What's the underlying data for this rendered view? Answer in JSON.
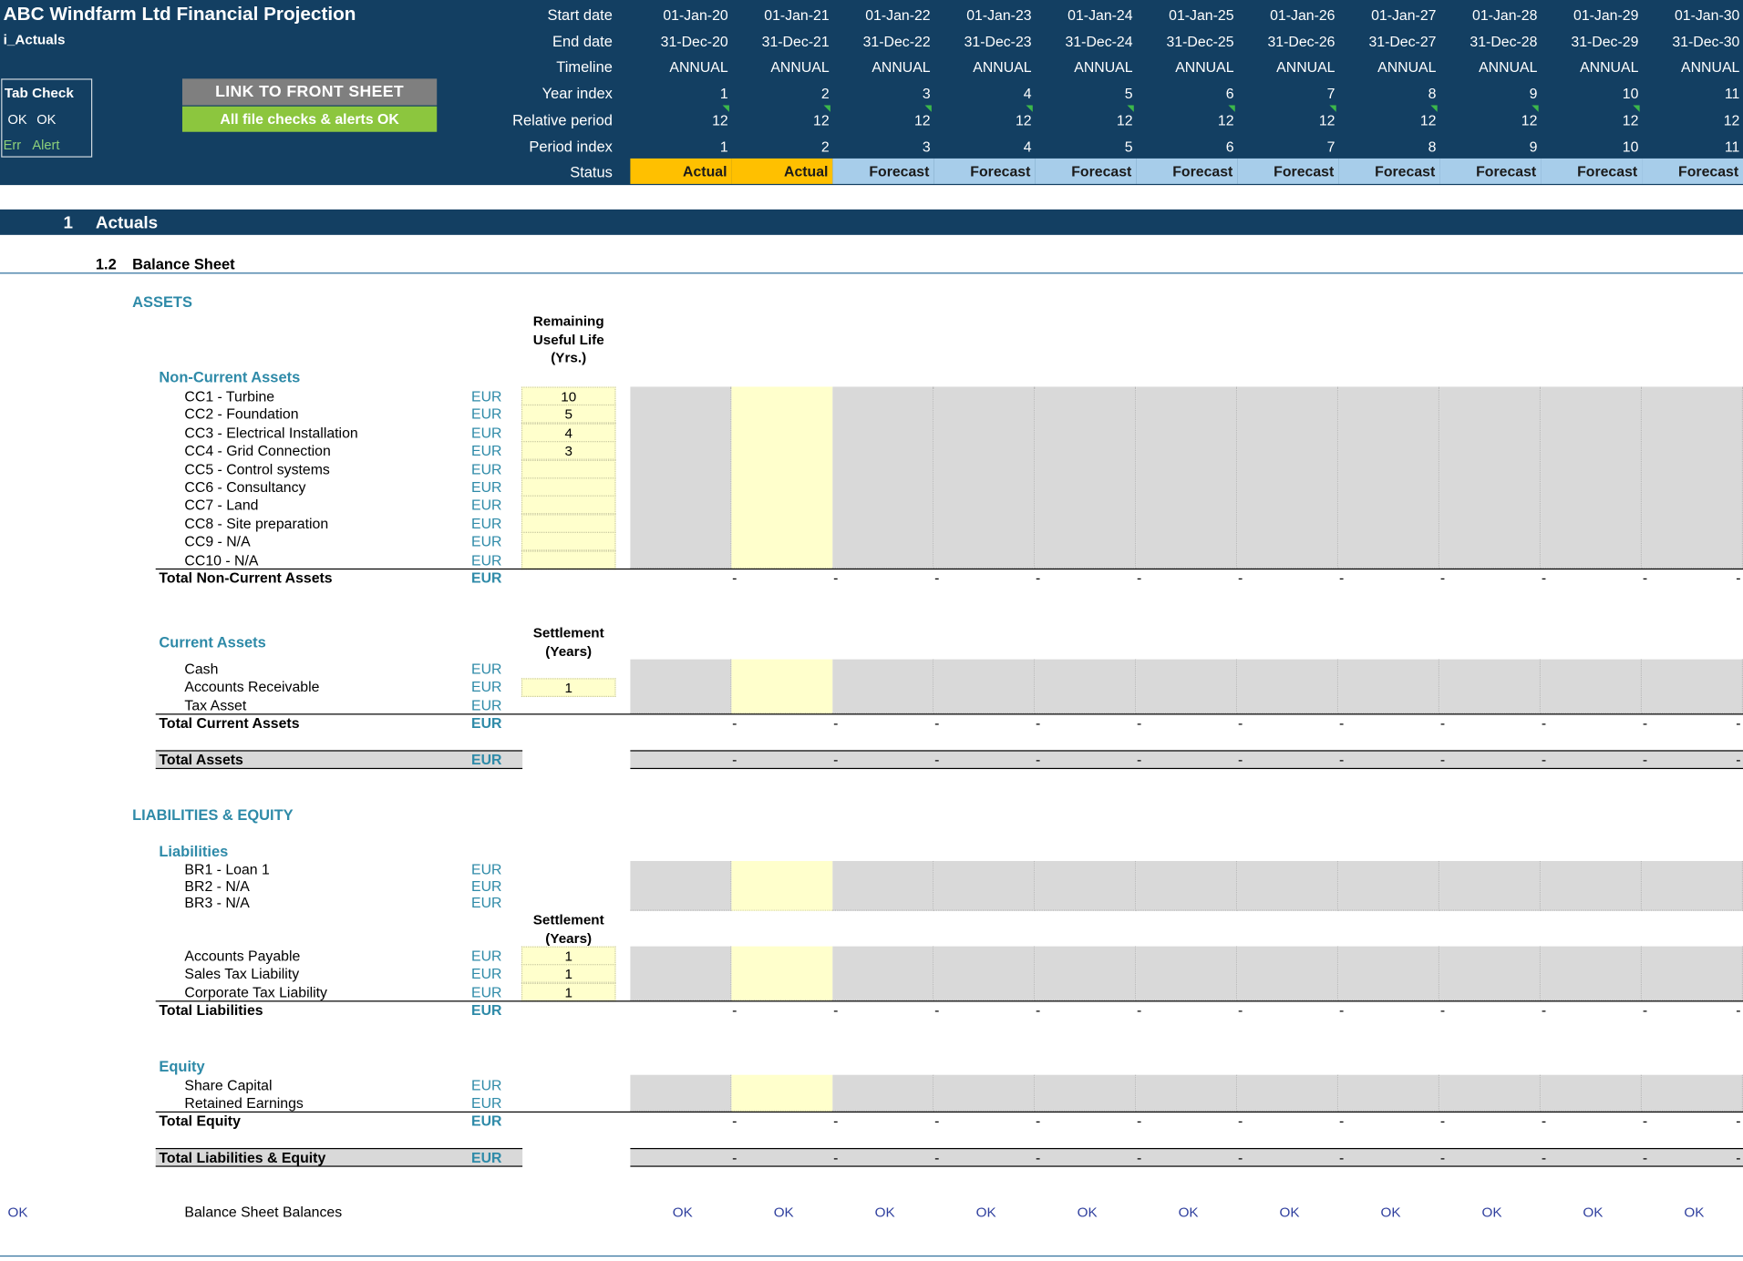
{
  "header": {
    "title": "ABC Windfarm Ltd Financial Projection",
    "sheet": "i_Actuals",
    "tab_check": {
      "title": "Tab Check",
      "ok1": "OK",
      "ok2": "OK",
      "err": "Err",
      "alert": "Alert"
    },
    "link_button": "LINK TO FRONT SHEET",
    "checks_status": "All file checks & alerts OK",
    "row_labels": {
      "start": "Start date",
      "end": "End date",
      "timeline": "Timeline",
      "year_index": "Year index",
      "relative": "Relative period",
      "period_index": "Period index",
      "status": "Status"
    },
    "columns": [
      {
        "start": "01-Jan-20",
        "end": "31-Dec-20",
        "timeline": "ANNUAL",
        "year": "1",
        "rel": "12",
        "period": "1",
        "status": "Actual"
      },
      {
        "start": "01-Jan-21",
        "end": "31-Dec-21",
        "timeline": "ANNUAL",
        "year": "2",
        "rel": "12",
        "period": "2",
        "status": "Actual"
      },
      {
        "start": "01-Jan-22",
        "end": "31-Dec-22",
        "timeline": "ANNUAL",
        "year": "3",
        "rel": "12",
        "period": "3",
        "status": "Forecast"
      },
      {
        "start": "01-Jan-23",
        "end": "31-Dec-23",
        "timeline": "ANNUAL",
        "year": "4",
        "rel": "12",
        "period": "4",
        "status": "Forecast"
      },
      {
        "start": "01-Jan-24",
        "end": "31-Dec-24",
        "timeline": "ANNUAL",
        "year": "5",
        "rel": "12",
        "period": "5",
        "status": "Forecast"
      },
      {
        "start": "01-Jan-25",
        "end": "31-Dec-25",
        "timeline": "ANNUAL",
        "year": "6",
        "rel": "12",
        "period": "6",
        "status": "Forecast"
      },
      {
        "start": "01-Jan-26",
        "end": "31-Dec-26",
        "timeline": "ANNUAL",
        "year": "7",
        "rel": "12",
        "period": "7",
        "status": "Forecast"
      },
      {
        "start": "01-Jan-27",
        "end": "31-Dec-27",
        "timeline": "ANNUAL",
        "year": "8",
        "rel": "12",
        "period": "8",
        "status": "Forecast"
      },
      {
        "start": "01-Jan-28",
        "end": "31-Dec-28",
        "timeline": "ANNUAL",
        "year": "9",
        "rel": "12",
        "period": "9",
        "status": "Forecast"
      },
      {
        "start": "01-Jan-29",
        "end": "31-Dec-29",
        "timeline": "ANNUAL",
        "year": "10",
        "rel": "12",
        "period": "10",
        "status": "Forecast"
      },
      {
        "start": "01-Jan-30",
        "end": "31-Dec-30",
        "timeline": "ANNUAL",
        "year": "11",
        "rel": "12",
        "period": "11",
        "status": "Forecast"
      }
    ]
  },
  "section": {
    "number": "1",
    "title": "Actuals",
    "sub_number": "1.2",
    "sub_title": "Balance Sheet"
  },
  "assets": {
    "title": "ASSETS",
    "non_current": {
      "title": "Non-Current Assets",
      "col_header": [
        "Remaining",
        "Useful Life",
        "(Yrs.)"
      ],
      "rows": [
        {
          "label": "CC1 - Turbine",
          "unit": "EUR",
          "input": "10"
        },
        {
          "label": "CC2 - Foundation",
          "unit": "EUR",
          "input": "5"
        },
        {
          "label": "CC3 - Electrical Installation",
          "unit": "EUR",
          "input": "4"
        },
        {
          "label": "CC4 - Grid Connection",
          "unit": "EUR",
          "input": "3"
        },
        {
          "label": "CC5 - Control systems",
          "unit": "EUR",
          "input": ""
        },
        {
          "label": "CC6 - Consultancy",
          "unit": "EUR",
          "input": ""
        },
        {
          "label": "CC7 - Land",
          "unit": "EUR",
          "input": ""
        },
        {
          "label": "CC8 - Site preparation",
          "unit": "EUR",
          "input": ""
        },
        {
          "label": "CC9 - N/A",
          "unit": "EUR",
          "input": ""
        },
        {
          "label": "CC10 - N/A",
          "unit": "EUR",
          "input": ""
        }
      ],
      "total": {
        "label": "Total Non-Current Assets",
        "unit": "EUR"
      }
    },
    "current": {
      "title": "Current Assets",
      "col_header": [
        "Settlement",
        "(Years)"
      ],
      "rows": [
        {
          "label": "Cash",
          "unit": "EUR",
          "input": null
        },
        {
          "label": "Accounts Receivable",
          "unit": "EUR",
          "input": "1"
        },
        {
          "label": "Tax Asset",
          "unit": "EUR",
          "input": null
        }
      ],
      "total": {
        "label": "Total Current Assets",
        "unit": "EUR"
      }
    },
    "total": {
      "label": "Total Assets",
      "unit": "EUR"
    }
  },
  "liabilities_equity": {
    "title": "LIABILITIES & EQUITY",
    "liabilities": {
      "title": "Liabilities",
      "loans": [
        {
          "label": "BR1 - Loan 1",
          "unit": "EUR"
        },
        {
          "label": "BR2 - N/A",
          "unit": "EUR"
        },
        {
          "label": "BR3 - N/A",
          "unit": "EUR"
        }
      ],
      "col_header": [
        "Settlement",
        "(Years)"
      ],
      "payables": [
        {
          "label": "Accounts Payable",
          "unit": "EUR",
          "input": "1"
        },
        {
          "label": "Sales Tax Liability",
          "unit": "EUR",
          "input": "1"
        },
        {
          "label": "Corporate Tax Liability",
          "unit": "EUR",
          "input": "1"
        }
      ],
      "total": {
        "label": "Total Liabilities",
        "unit": "EUR"
      }
    },
    "equity": {
      "title": "Equity",
      "rows": [
        {
          "label": "Share Capital",
          "unit": "EUR"
        },
        {
          "label": "Retained Earnings",
          "unit": "EUR"
        }
      ],
      "total": {
        "label": "Total Equity",
        "unit": "EUR"
      }
    },
    "total": {
      "label": "Total Liabilities & Equity",
      "unit": "EUR"
    }
  },
  "check_row": {
    "flag": "OK",
    "label": "Balance Sheet Balances",
    "value": "OK"
  },
  "dash": "-",
  "colors": {
    "header_bg": "#133f62",
    "actual": "#ffc000",
    "forecast": "#a7cdea",
    "input": "#ffffcc",
    "link_button": "#7f7f7f",
    "ok_button": "#8cc63e",
    "section_text": "#2e8aa8"
  }
}
